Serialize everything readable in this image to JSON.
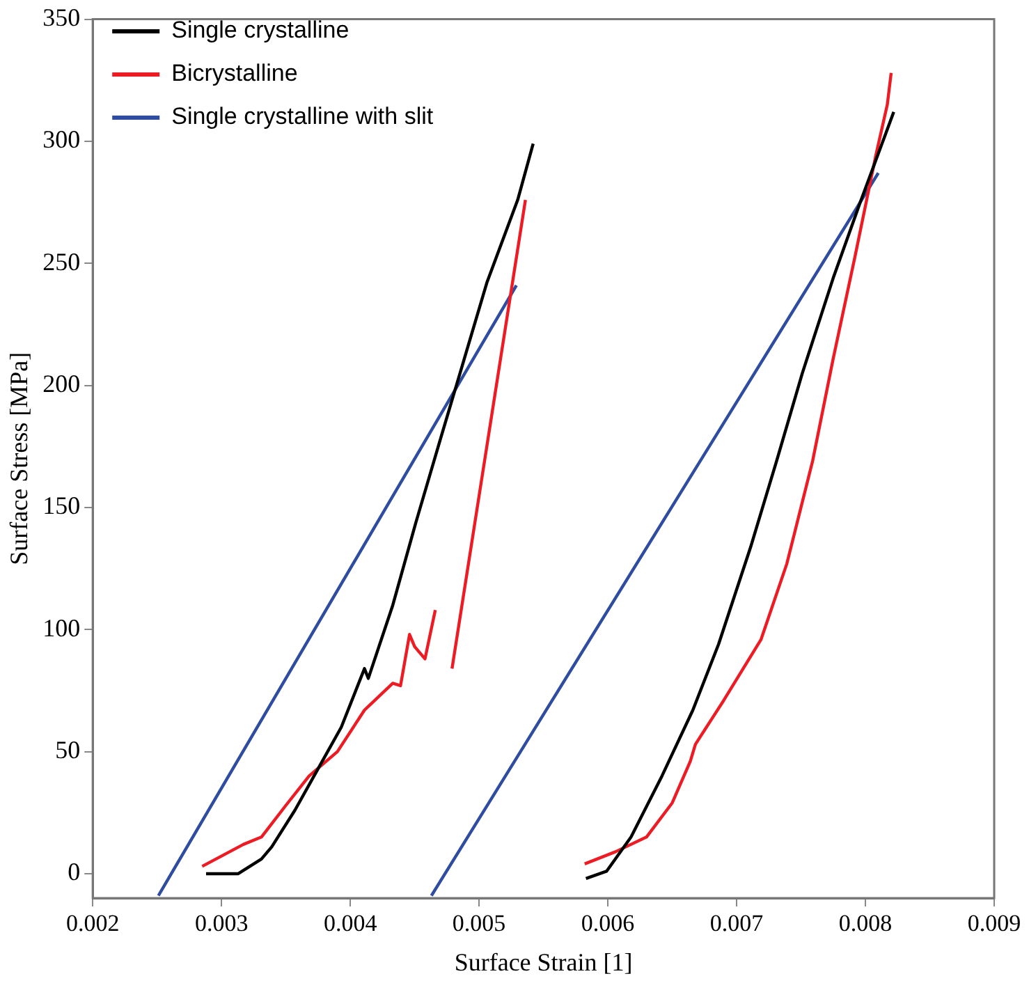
{
  "chart_data": {
    "type": "line",
    "xlabel": "Surface Strain [1]",
    "ylabel": "Surface Stress [MPa]",
    "xlim": [
      0.002,
      0.009
    ],
    "xticks": [
      0.002,
      0.003,
      0.004,
      0.005,
      0.006,
      0.007,
      0.008,
      0.009
    ],
    "ylim": [
      -10,
      350
    ],
    "yticks": [
      0,
      50,
      100,
      150,
      200,
      250,
      300,
      350
    ],
    "grid": false,
    "legend": "top left",
    "marker": "none",
    "line_style": "solid",
    "series": [
      {
        "name": "Single crystalline",
        "color": "#000000",
        "x": [
          0.00288,
          0.00313,
          0.00331,
          0.00339,
          0.00357,
          0.00375,
          0.00393,
          0.00411,
          0.00414,
          0.00433,
          0.00451,
          0.0047,
          0.00488,
          0.00506,
          0.0053,
          0.00542,
          null,
          0.00583,
          0.00599,
          0.00618,
          0.00642,
          0.00666,
          0.00686,
          0.00711,
          0.00731,
          0.00751,
          0.00775,
          0.00796,
          0.00822
        ],
        "values": [
          0,
          0,
          6,
          11,
          26,
          43,
          60,
          84,
          80,
          110,
          144,
          178,
          210,
          242,
          276,
          299,
          null,
          -2,
          1,
          15,
          40,
          67,
          94,
          134,
          169,
          205,
          244,
          275,
          312
        ]
      },
      {
        "name": "Bicrystalline",
        "color": "#ed1c24",
        "x": [
          0.00285,
          0.00317,
          0.00331,
          0.0035,
          0.00368,
          0.0039,
          0.00411,
          0.00433,
          0.00439,
          0.00446,
          0.0045,
          0.00458,
          0.00466,
          null,
          0.00479,
          0.00536,
          null,
          0.00582,
          0.00606,
          0.0063,
          0.0065,
          0.00664,
          0.00668,
          0.0069,
          0.00719,
          0.00739,
          0.00759,
          0.00775,
          0.00792,
          0.00808,
          0.00817,
          0.0082
        ],
        "values": [
          3,
          12,
          15,
          28,
          40,
          50,
          67,
          78,
          77,
          98,
          93,
          88,
          108,
          null,
          84,
          276,
          null,
          4,
          9,
          15,
          29,
          46,
          53,
          71,
          96,
          127,
          169,
          211,
          253,
          294,
          315,
          328
        ]
      },
      {
        "name": "Single crystalline with slit",
        "color": "#2e4ca0",
        "x": [
          0.00251,
          0.00529,
          null,
          0.00463,
          0.0081
        ],
        "values": [
          -9,
          241,
          null,
          -9,
          287
        ]
      }
    ]
  }
}
